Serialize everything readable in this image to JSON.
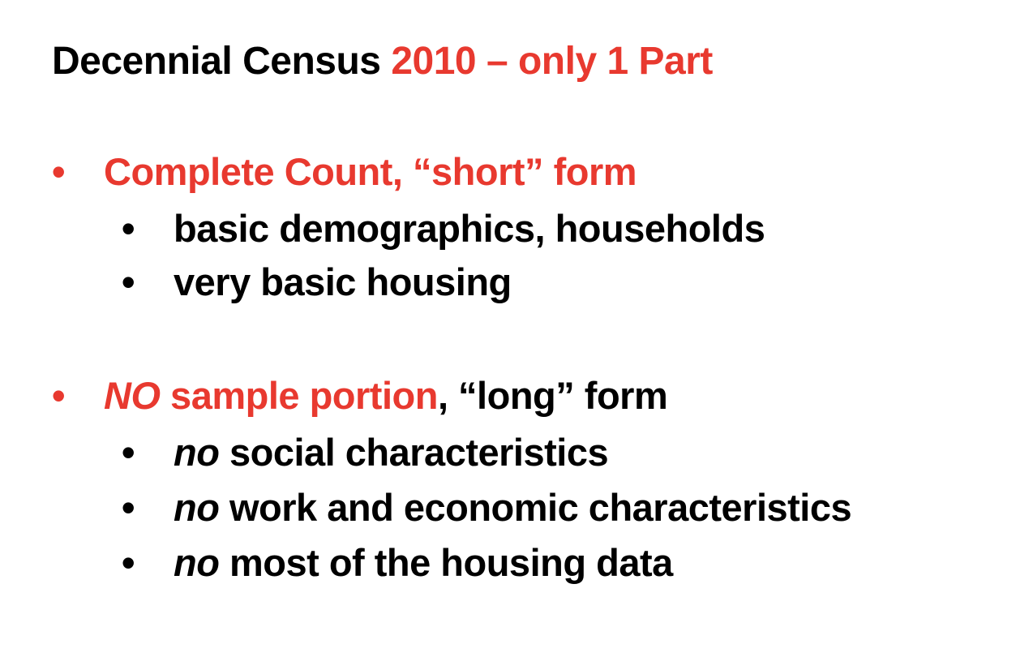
{
  "title": {
    "part1": "Decennial Census ",
    "part2": "2010 – only 1 Part"
  },
  "bullet_char": "•",
  "colors": {
    "accent": "#e8392f",
    "text": "#000000",
    "background": "#ffffff"
  },
  "sections": [
    {
      "heading": "Complete Count, “short” form",
      "items": [
        "basic demographics, households",
        "very basic housing"
      ]
    },
    {
      "heading_em": "NO",
      "heading_red": " sample portion",
      "heading_black": ", “long” form",
      "items": [
        {
          "em": "no",
          "rest": " social characteristics"
        },
        {
          "em": "no",
          "rest": " work and economic characteristics"
        },
        {
          "em": "no",
          "rest": " most of the housing data"
        }
      ]
    }
  ]
}
